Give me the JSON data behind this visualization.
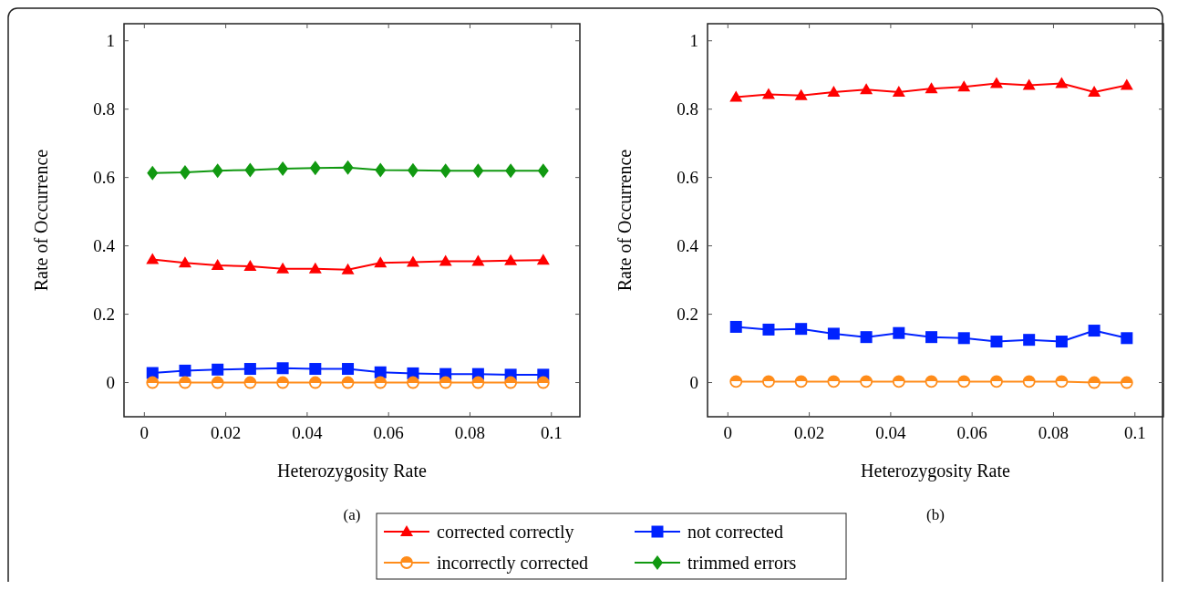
{
  "chart_data": [
    {
      "type": "line",
      "title": "(a)",
      "xlabel": "Heterozygosity Rate",
      "ylabel": "Rate of Occurrence",
      "x": [
        0.002,
        0.01,
        0.018,
        0.026,
        0.034,
        0.042,
        0.05,
        0.058,
        0.066,
        0.074,
        0.082,
        0.09,
        0.098
      ],
      "xlim": [
        -0.005,
        0.107
      ],
      "ylim": [
        -0.1,
        1.05
      ],
      "xticks": [
        0,
        0.02,
        0.04,
        0.06,
        0.08,
        0.1
      ],
      "yticks": [
        0,
        0.2,
        0.4,
        0.6,
        0.8,
        1
      ],
      "grid": false,
      "legend": "bottom",
      "series": [
        {
          "name": "corrected correctly",
          "color": "#ff0000",
          "marker": "triangle",
          "values": [
            0.36,
            0.35,
            0.343,
            0.34,
            0.333,
            0.333,
            0.33,
            0.35,
            0.352,
            0.355,
            0.355,
            0.357,
            0.358
          ]
        },
        {
          "name": "not corrected",
          "color": "#0022ff",
          "marker": "square",
          "values": [
            0.028,
            0.035,
            0.038,
            0.04,
            0.042,
            0.04,
            0.04,
            0.03,
            0.027,
            0.025,
            0.025,
            0.023,
            0.023
          ]
        },
        {
          "name": "incorrectly corrected",
          "color": "#ff8c1a",
          "marker": "circle",
          "values": [
            0,
            0,
            0,
            0,
            0,
            0,
            0,
            0,
            0,
            0,
            0,
            0,
            0
          ]
        },
        {
          "name": "trimmed errors",
          "color": "#119911",
          "marker": "diamond",
          "values": [
            0.613,
            0.615,
            0.62,
            0.622,
            0.626,
            0.628,
            0.629,
            0.622,
            0.621,
            0.62,
            0.62,
            0.62,
            0.62
          ]
        }
      ]
    },
    {
      "type": "line",
      "title": "(b)",
      "xlabel": "Heterozygosity Rate",
      "ylabel": "Rate of Occurrence",
      "x": [
        0.002,
        0.01,
        0.018,
        0.026,
        0.034,
        0.042,
        0.05,
        0.058,
        0.066,
        0.074,
        0.082,
        0.09,
        0.098
      ],
      "xlim": [
        -0.005,
        0.107
      ],
      "ylim": [
        -0.1,
        1.05
      ],
      "xticks": [
        0,
        0.02,
        0.04,
        0.06,
        0.08,
        0.1
      ],
      "yticks": [
        0,
        0.2,
        0.4,
        0.6,
        0.8,
        1
      ],
      "grid": false,
      "series": [
        {
          "color": "#ff0000",
          "marker": "triangle",
          "values": [
            0.835,
            0.843,
            0.84,
            0.85,
            0.857,
            0.85,
            0.86,
            0.865,
            0.875,
            0.87,
            0.875,
            0.85,
            0.87
          ]
        },
        {
          "color": "#0022ff",
          "marker": "square",
          "values": [
            0.163,
            0.155,
            0.157,
            0.143,
            0.133,
            0.145,
            0.133,
            0.13,
            0.12,
            0.125,
            0.12,
            0.152,
            0.13
          ]
        },
        {
          "color": "#ff8c1a",
          "marker": "circle",
          "values": [
            0.003,
            0.003,
            0.003,
            0.003,
            0.003,
            0.003,
            0.003,
            0.003,
            0.003,
            0.003,
            0.003,
            0,
            0
          ]
        }
      ]
    }
  ]
}
